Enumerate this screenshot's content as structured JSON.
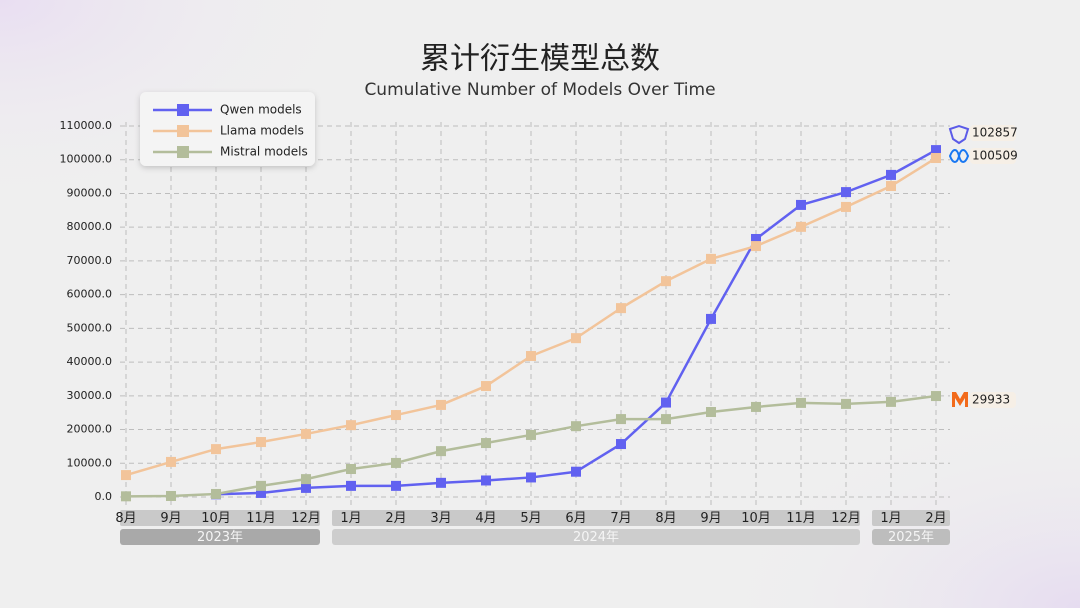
{
  "chart_data": {
    "type": "line",
    "title": "累计衍生模型总数",
    "subtitle": "Cumulative Number of Models Over Time",
    "category_groups": [
      {
        "label": "2023年",
        "categories": [
          "8月",
          "9月",
          "10月",
          "11月",
          "12月"
        ]
      },
      {
        "label": "2024年",
        "categories": [
          "1月",
          "2月",
          "3月",
          "4月",
          "5月",
          "6月",
          "7月",
          "8月",
          "9月",
          "10月",
          "11月",
          "12月"
        ]
      },
      {
        "label": "2025年",
        "categories": [
          "1月",
          "2月"
        ]
      }
    ],
    "series": [
      {
        "name": "Qwen models",
        "color": "#6161f0",
        "end_label": "102857",
        "values": [
          null,
          null,
          800,
          1200,
          2700,
          3300,
          3300,
          4200,
          4900,
          5800,
          7500,
          15700,
          28000,
          52800,
          76500,
          86600,
          90400,
          95500,
          102857
        ]
      },
      {
        "name": "Llama models",
        "color": "#f2c49a",
        "end_label": "100509",
        "values": [
          6500,
          10400,
          14200,
          16300,
          18700,
          21300,
          24300,
          27300,
          32900,
          41800,
          47100,
          56000,
          64000,
          70600,
          74400,
          80100,
          86000,
          92200,
          100509
        ]
      },
      {
        "name": "Mistral models",
        "color": "#b3bd9b",
        "end_label": "29933",
        "values": [
          200,
          300,
          900,
          3300,
          5300,
          8300,
          10100,
          13600,
          16000,
          18400,
          21000,
          23100,
          23100,
          25200,
          26700,
          27900,
          27600,
          28200,
          29933
        ]
      }
    ],
    "ylim": [
      0,
      110000
    ],
    "yticks": [
      {
        "value": 0,
        "label": "0.0"
      },
      {
        "value": 10000,
        "label": "10000.0"
      },
      {
        "value": 20000,
        "label": "20000.0"
      },
      {
        "value": 30000,
        "label": "30000.0"
      },
      {
        "value": 40000,
        "label": "40000.0"
      },
      {
        "value": 50000,
        "label": "50000.0"
      },
      {
        "value": 60000,
        "label": "60000.0"
      },
      {
        "value": 70000,
        "label": "70000.0"
      },
      {
        "value": 80000,
        "label": "80000.0"
      },
      {
        "value": 90000,
        "label": "90000.0"
      },
      {
        "value": 100000,
        "label": "100000.0"
      },
      {
        "value": 110000,
        "label": "110000.0"
      }
    ],
    "grid": true,
    "legend": "upper left"
  }
}
